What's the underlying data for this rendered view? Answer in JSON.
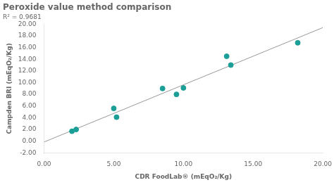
{
  "chart_data": {
    "type": "scatter",
    "title": "Peroxide value method comparison",
    "annotation": "R² = 0.9681",
    "xlabel": "CDR FoodLab® (mEqO₂/Kg)",
    "ylabel": "Campden BRI (mEqO₂/Kg)",
    "series": [
      {
        "type": "scatter",
        "marker": "circle",
        "color": "#1a9e96",
        "x": [
          2.0,
          2.3,
          5.0,
          5.2,
          8.5,
          9.5,
          10.0,
          13.1,
          13.4,
          18.2
        ],
        "values": [
          1.7,
          2.0,
          5.6,
          4.1,
          9.0,
          8.0,
          9.1,
          14.5,
          13.0,
          16.8
        ]
      },
      {
        "type": "line",
        "line_style": "solid",
        "color": "#999999",
        "x": [
          0.0,
          20.0
        ],
        "values": [
          -0.1321,
          19.391
        ]
      }
    ],
    "xlim": [
      0.0,
      20.0
    ],
    "ylim": [
      -2.0,
      20.0
    ],
    "xticks": [
      {
        "value": 0,
        "label": "0.00"
      },
      {
        "value": 5,
        "label": "5.00"
      },
      {
        "value": 10,
        "label": "10.00"
      },
      {
        "value": 15,
        "label": "15.00"
      },
      {
        "value": 20,
        "label": "20.00"
      }
    ],
    "yticks": [
      {
        "value": -2,
        "label": "-2.00"
      },
      {
        "value": 0,
        "label": "0.00"
      },
      {
        "value": 2,
        "label": "2.00"
      },
      {
        "value": 4,
        "label": "4.00"
      },
      {
        "value": 6,
        "label": "6.00"
      },
      {
        "value": 8,
        "label": "8.00"
      },
      {
        "value": 10,
        "label": "10.00"
      },
      {
        "value": 12,
        "label": "12.00"
      },
      {
        "value": 14,
        "label": "14.00"
      },
      {
        "value": 16,
        "label": "16.00"
      },
      {
        "value": 18,
        "label": "18.00"
      },
      {
        "value": 20,
        "label": "20.00"
      }
    ],
    "grid": false
  }
}
